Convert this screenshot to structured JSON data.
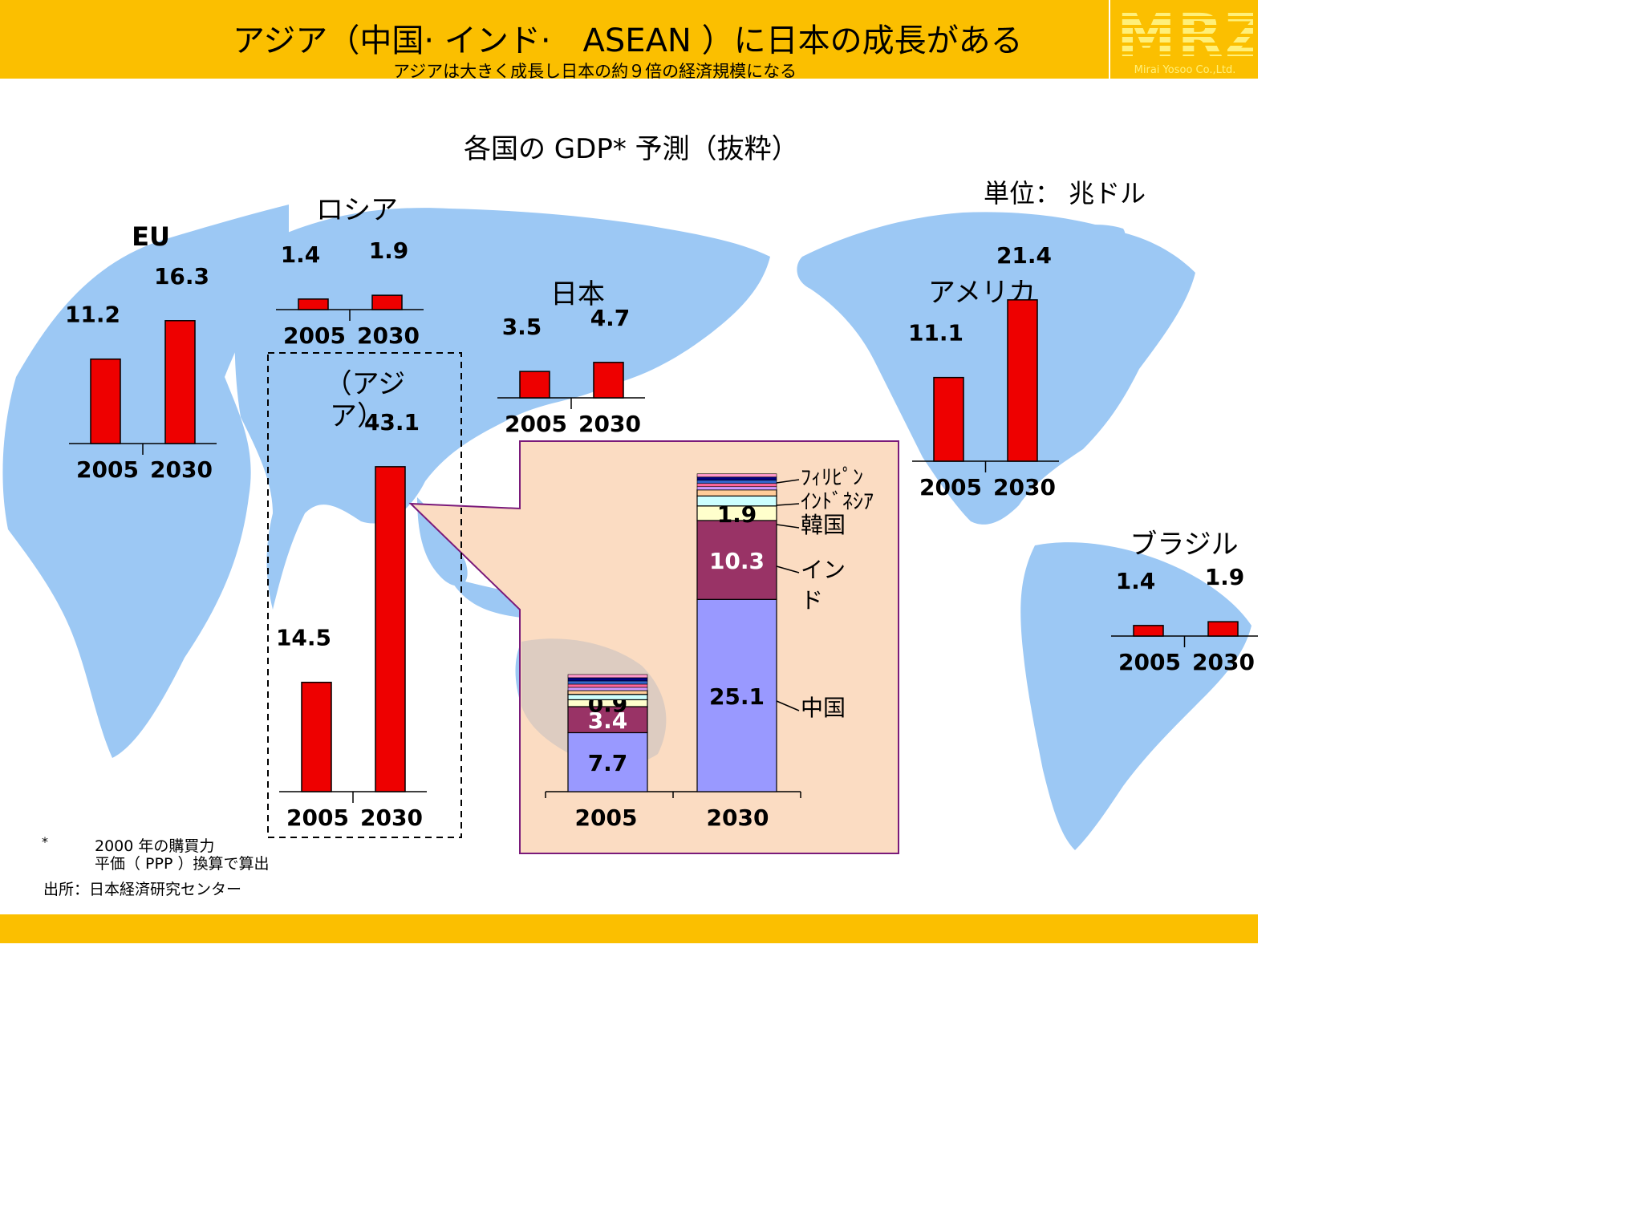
{
  "header": {
    "title": "アジア（中国· インド·　ASEAN ）に日本の成長がある",
    "subtitle": "アジアは大きく成長し日本の約９倍の経済規模になる"
  },
  "logo": {
    "name": "MRZ",
    "company": "Mirai Yosoo Co.,Ltd."
  },
  "unit_label": "単位：  兆ドル",
  "footnote": {
    "mark": "*",
    "line1": "2000 年の購買力",
    "line2": "平価（ PPP ）換算で算出"
  },
  "source": "出所：日本経済研究センター",
  "colors": {
    "header": "#fbbf00",
    "bar": "#ee0000",
    "map": "#9cc8f4",
    "callout_fill": "#fbdcc2",
    "callout_border": "#7a1a7a",
    "china": "#9999ff",
    "india": "#993366",
    "korea": "#ffffcc",
    "indonesia": "#ccffff"
  },
  "chart_data": [
    {
      "type": "bar",
      "title": "各国の GDP* 予測（抜粋）",
      "categories": [
        "2005",
        "2030"
      ],
      "series": [
        {
          "name": "EU",
          "values": [
            11.2,
            16.3
          ]
        },
        {
          "name": "ロシア",
          "values": [
            1.4,
            1.9
          ]
        },
        {
          "name": "日本",
          "values": [
            3.5,
            4.7
          ]
        },
        {
          "name": "アメリカ",
          "values": [
            11.1,
            21.4
          ]
        },
        {
          "name": "ブラジル",
          "values": [
            1.4,
            1.9
          ]
        },
        {
          "name": "（アジア）",
          "values": [
            14.5,
            43.1
          ]
        }
      ]
    },
    {
      "type": "bar",
      "stacked": true,
      "categories": [
        "2005",
        "2030"
      ],
      "series": [
        {
          "name": "中国",
          "values": [
            7.7,
            25.1
          ],
          "labels": [
            "7.7",
            "25.1"
          ]
        },
        {
          "name": "インド",
          "values": [
            3.4,
            10.3
          ],
          "labels": [
            "3.4",
            "10.3"
          ]
        },
        {
          "name": "韓国",
          "values": [
            0.9,
            1.9
          ],
          "labels": [
            "0.9",
            "1.9"
          ]
        },
        {
          "name": "ｲﾝﾄﾞﾈｼｱ",
          "values": [
            0.7,
            1.3
          ]
        },
        {
          "name": "ﾌｨﾘﾋﾟﾝ",
          "values": [
            0.5,
            0.8
          ]
        }
      ]
    }
  ]
}
